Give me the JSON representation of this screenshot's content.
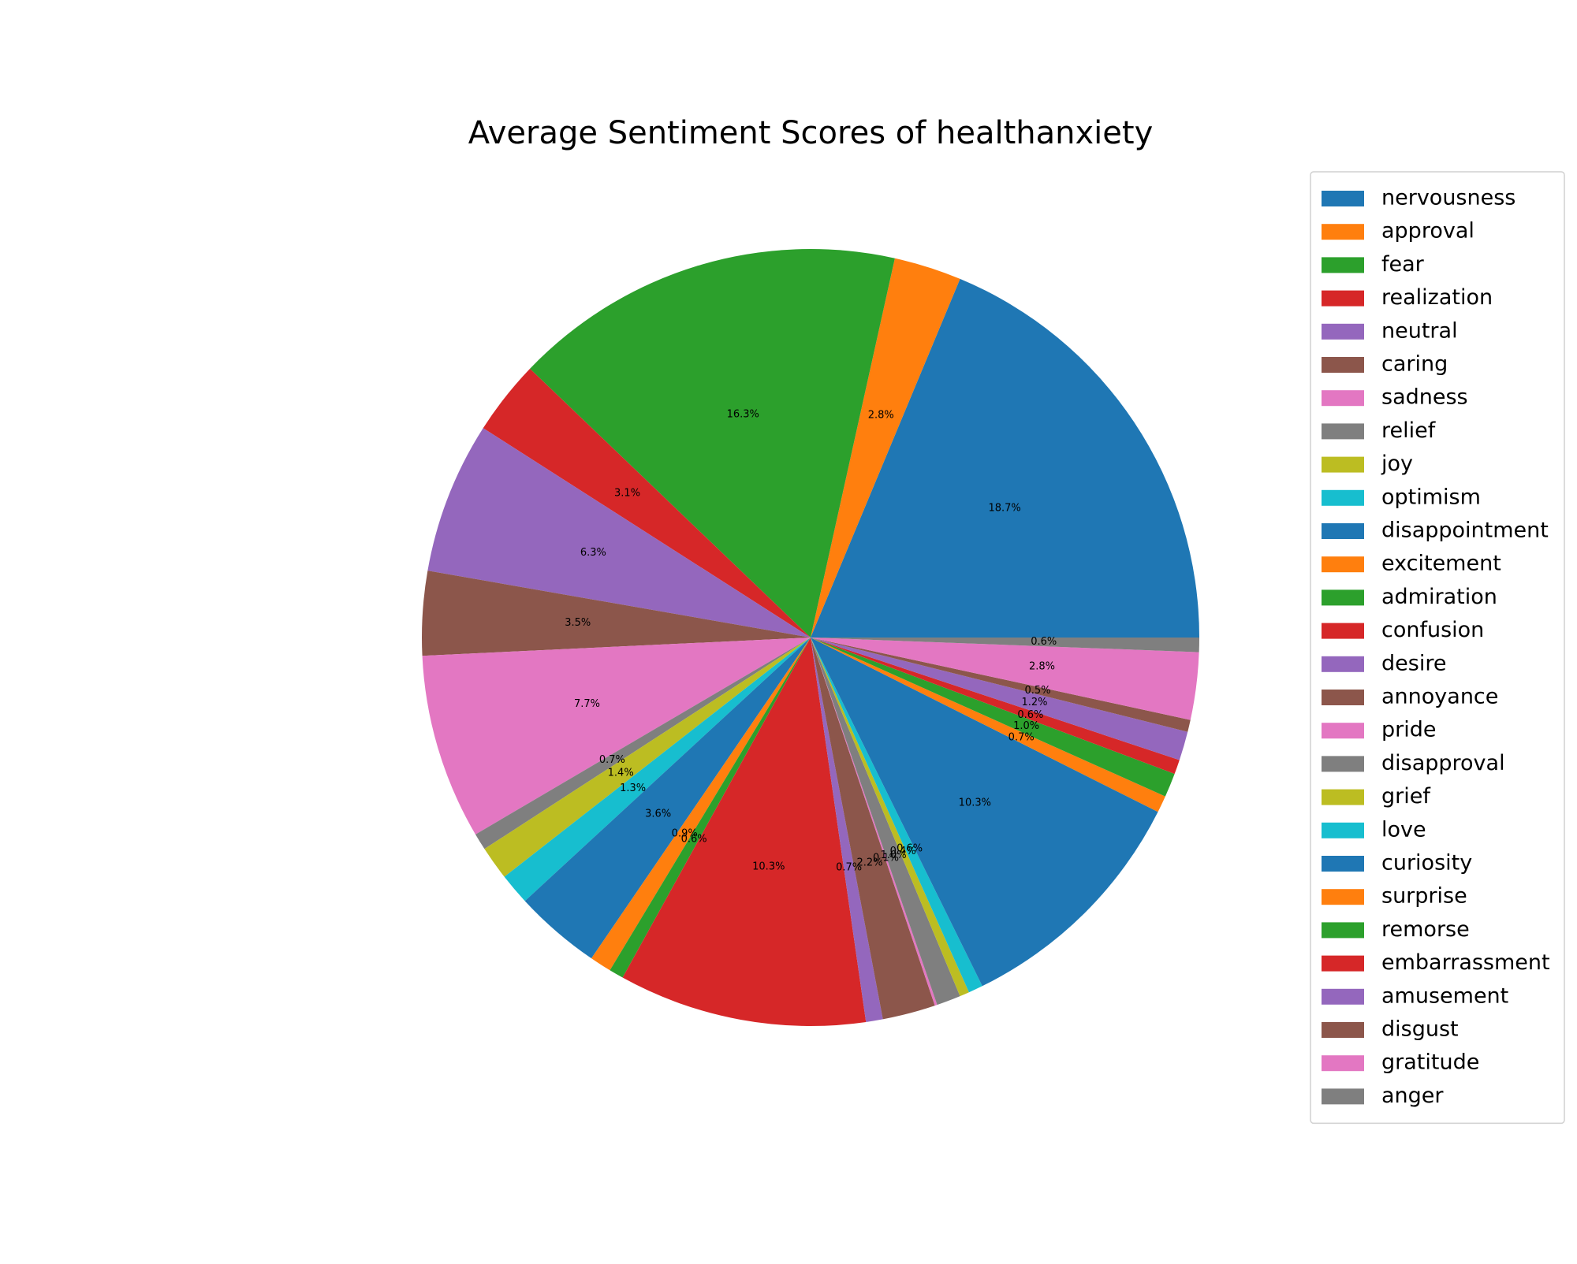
{
  "chart_data": {
    "type": "pie",
    "title": "Average Sentiment Scores of healthanxiety",
    "legend_position": "right",
    "start_angle_deg": 0,
    "direction": "counterclockwise",
    "slices": [
      {
        "label": "nervousness",
        "value": 18.7,
        "pct_label": "18.7%",
        "color": "#1f77b4"
      },
      {
        "label": "approval",
        "value": 2.8,
        "pct_label": "2.8%",
        "color": "#ff7f0e"
      },
      {
        "label": "fear",
        "value": 16.3,
        "pct_label": "16.3%",
        "color": "#2ca02c"
      },
      {
        "label": "realization",
        "value": 3.1,
        "pct_label": "3.1%",
        "color": "#d62728"
      },
      {
        "label": "neutral",
        "value": 6.3,
        "pct_label": "6.3%",
        "color": "#9467bd"
      },
      {
        "label": "caring",
        "value": 3.5,
        "pct_label": "3.5%",
        "color": "#8c564b"
      },
      {
        "label": "sadness",
        "value": 7.7,
        "pct_label": "7.7%",
        "color": "#e377c2"
      },
      {
        "label": "relief",
        "value": 0.7,
        "pct_label": "0.7%",
        "color": "#7f7f7f"
      },
      {
        "label": "joy",
        "value": 1.4,
        "pct_label": "1.4%",
        "color": "#bcbd22"
      },
      {
        "label": "optimism",
        "value": 1.3,
        "pct_label": "1.3%",
        "color": "#17becf"
      },
      {
        "label": "disappointment",
        "value": 3.6,
        "pct_label": "3.6%",
        "color": "#1f77b4"
      },
      {
        "label": "excitement",
        "value": 0.9,
        "pct_label": "0.9%",
        "color": "#ff7f0e"
      },
      {
        "label": "admiration",
        "value": 0.6,
        "pct_label": "0.6%",
        "color": "#2ca02c"
      },
      {
        "label": "confusion",
        "value": 10.3,
        "pct_label": "10.3%",
        "color": "#d62728"
      },
      {
        "label": "desire",
        "value": 0.7,
        "pct_label": "0.7%",
        "color": "#9467bd"
      },
      {
        "label": "annoyance",
        "value": 2.2,
        "pct_label": "2.2%",
        "color": "#8c564b"
      },
      {
        "label": "pride",
        "value": 0.1,
        "pct_label": "0.1%",
        "color": "#e377c2"
      },
      {
        "label": "disapproval",
        "value": 1.0,
        "pct_label": "1.0%",
        "color": "#7f7f7f"
      },
      {
        "label": "grief",
        "value": 0.4,
        "pct_label": "0.4%",
        "color": "#bcbd22"
      },
      {
        "label": "love",
        "value": 0.6,
        "pct_label": "0.6%",
        "color": "#17becf"
      },
      {
        "label": "curiosity",
        "value": 10.3,
        "pct_label": "10.3%",
        "color": "#1f77b4"
      },
      {
        "label": "surprise",
        "value": 0.7,
        "pct_label": "0.7%",
        "color": "#ff7f0e"
      },
      {
        "label": "remorse",
        "value": 1.0,
        "pct_label": "1.0%",
        "color": "#2ca02c"
      },
      {
        "label": "embarrassment",
        "value": 0.6,
        "pct_label": "0.6%",
        "color": "#d62728"
      },
      {
        "label": "amusement",
        "value": 1.2,
        "pct_label": "1.2%",
        "color": "#9467bd"
      },
      {
        "label": "disgust",
        "value": 0.5,
        "pct_label": "0.5%",
        "color": "#8c564b"
      },
      {
        "label": "gratitude",
        "value": 2.8,
        "pct_label": "2.8%",
        "color": "#e377c2"
      },
      {
        "label": "anger",
        "value": 0.6,
        "pct_label": "0.6%",
        "color": "#7f7f7f"
      }
    ]
  }
}
